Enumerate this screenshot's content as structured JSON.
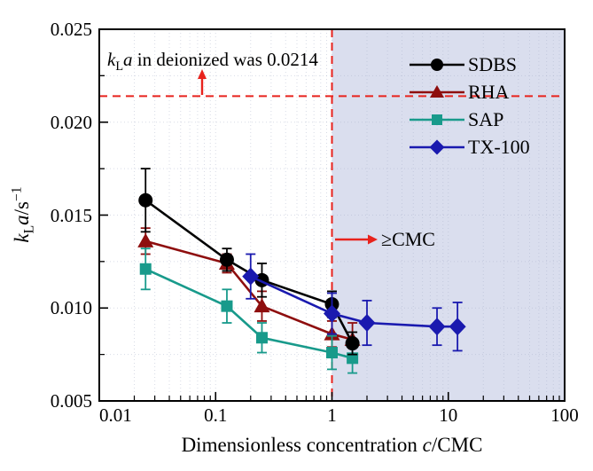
{
  "figure": {
    "background": "#ffffff",
    "frame_color": "#000000",
    "accent_red": "#e8231d",
    "shade_color": "#dadeee",
    "grid_color": "#a9b1c9"
  },
  "axes": {
    "x": {
      "title_prefix": "Dimensionless concentration ",
      "title_italic": "c",
      "title_suffix": "/CMC",
      "scale": "log",
      "tick_labels": [
        "0.01",
        "0.1",
        "1",
        "10",
        "100"
      ],
      "tick_values": [
        0.01,
        0.1,
        1,
        10,
        100
      ]
    },
    "y": {
      "title_k": "k",
      "title_sub": "L",
      "title_a": "a",
      "title_unit": "/s",
      "title_sup": "−1",
      "scale": "linear",
      "tick_labels": [
        "0.005",
        "0.010",
        "0.015",
        "0.020",
        "0.025"
      ],
      "tick_values": [
        0.005,
        0.01,
        0.015,
        0.02,
        0.025
      ]
    }
  },
  "annotations": {
    "deionized": {
      "k": "k",
      "sub": "L",
      "a": "a",
      "rest": " in deionized was 0.0214",
      "line_value": 0.0214
    },
    "cmc": {
      "text": "≥CMC",
      "at_x": 1
    }
  },
  "chart_data": {
    "type": "line",
    "title": "",
    "xlabel": "Dimensionless concentration c/CMC",
    "ylabel": "kLa/s^-1",
    "xscale": "log",
    "xlim": [
      0.01,
      100
    ],
    "ylim": [
      0.005,
      0.025
    ],
    "xticks": [
      0.01,
      0.1,
      1,
      10,
      100
    ],
    "yticks": [
      0.005,
      0.01,
      0.015,
      0.02,
      0.025
    ],
    "grid": true,
    "legend_position": "upper right",
    "reference_hline_y": 0.0214,
    "reference_vline_x": 1,
    "shaded_x_range": [
      1,
      100
    ],
    "series": [
      {
        "name": "SDBS",
        "color": "#000000",
        "marker": "circle",
        "x": [
          0.025,
          0.125,
          0.25,
          1,
          1.5
        ],
        "y": [
          0.0158,
          0.0126,
          0.0115,
          0.0102,
          0.0081
        ],
        "yerr": [
          0.0017,
          0.0006,
          0.0009,
          0.0007,
          0.0006
        ]
      },
      {
        "name": "RHA",
        "color": "#8e0e0e",
        "marker": "triangle",
        "x": [
          0.025,
          0.125,
          0.25,
          1,
          1.5
        ],
        "y": [
          0.0136,
          0.0124,
          0.0101,
          0.0086,
          0.0083
        ],
        "yerr": [
          0.0007,
          0.0005,
          0.0008,
          0.0007,
          0.0009
        ]
      },
      {
        "name": "SAP",
        "color": "#189a8b",
        "marker": "square",
        "x": [
          0.025,
          0.125,
          0.25,
          1,
          1.5
        ],
        "y": [
          0.0121,
          0.0101,
          0.0084,
          0.0076,
          0.0073
        ],
        "yerr": [
          0.0011,
          0.0009,
          0.0008,
          0.0009,
          0.0008
        ]
      },
      {
        "name": "TX-100",
        "color": "#1a1aaf",
        "marker": "diamond",
        "x": [
          0.2,
          1,
          2,
          8,
          12
        ],
        "y": [
          0.0117,
          0.0097,
          0.0092,
          0.009,
          0.009
        ],
        "yerr": [
          0.0012,
          0.0011,
          0.0012,
          0.001,
          0.0013
        ]
      }
    ],
    "draw_order": [
      "RHA",
      "SAP",
      "SDBS",
      "TX-100"
    ]
  }
}
